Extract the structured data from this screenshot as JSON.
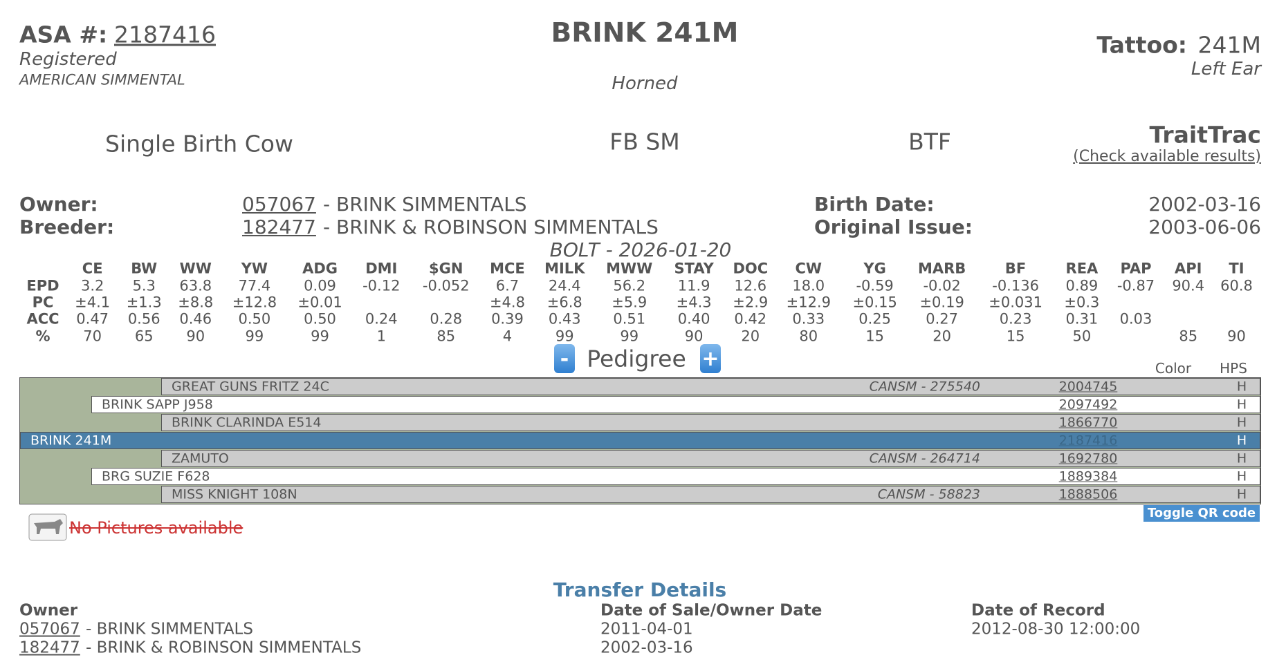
{
  "header": {
    "asa_label": "ASA #:",
    "asa_number": "2187416",
    "status": "Registered",
    "association": "AMERICAN SIMMENTAL",
    "name": "BRINK 241M",
    "horn": "Horned",
    "tattoo_label": "Tattoo:",
    "tattoo": "241M",
    "tattoo_location": "Left Ear"
  },
  "info": {
    "birth_type": "Single Birth Cow",
    "breed": "FB SM",
    "code": "BTF",
    "traittrac": "TraitTrac",
    "traittrac_link": "(Check available results)"
  },
  "parties": [
    {
      "label": "Owner:",
      "id": "057067",
      "name": "- BRINK SIMMENTALS",
      "date_label": "Birth Date:",
      "date": "2002-03-16"
    },
    {
      "label": "Breeder:",
      "id": "182477",
      "name": "- BRINK & ROBINSON SIMMENTALS",
      "date_label": "Original Issue:",
      "date": "2003-06-06"
    }
  ],
  "epd": {
    "title": "BOLT - 2026-01-20",
    "columns": [
      "CE",
      "BW",
      "WW",
      "YW",
      "ADG",
      "DMI",
      "$GN",
      "MCE",
      "MILK",
      "MWW",
      "STAY",
      "DOC",
      "CW",
      "YG",
      "MARB",
      "BF",
      "REA",
      "PAP",
      "API",
      "TI"
    ],
    "rows": [
      {
        "label": "EPD",
        "cells": [
          "3.2",
          "5.3",
          "63.8",
          "77.4",
          "0.09",
          "-0.12",
          "-0.052",
          "6.7",
          "24.4",
          "56.2",
          "11.9",
          "12.6",
          "18.0",
          "-0.59",
          "-0.02",
          "-0.136",
          "0.89",
          "-0.87",
          "90.4",
          "60.8"
        ]
      },
      {
        "label": "PC",
        "cells": [
          "±4.1",
          "±1.3",
          "±8.8",
          "±12.8",
          "±0.01",
          null,
          null,
          "±4.8",
          "±6.8",
          "±5.9",
          "±4.3",
          "±2.9",
          "±12.9",
          "±0.15",
          "±0.19",
          "±0.031",
          "±0.3",
          null,
          null,
          null
        ]
      },
      {
        "label": "ACC",
        "cells": [
          "0.47",
          "0.56",
          "0.46",
          "0.50",
          "0.50",
          "0.24",
          "0.28",
          "0.39",
          "0.43",
          "0.51",
          "0.40",
          "0.42",
          "0.33",
          "0.25",
          "0.27",
          "0.23",
          "0.31",
          "0.03",
          null,
          null
        ]
      },
      {
        "label": "%",
        "cells": [
          "70",
          "65",
          "90",
          "99",
          "99",
          "1",
          "85",
          "4",
          "99",
          "99",
          "90",
          "20",
          "80",
          "15",
          "20",
          "15",
          "50",
          null,
          "85",
          "90"
        ]
      }
    ]
  },
  "pedigree": {
    "title": "Pedigree",
    "collapse": "-",
    "expand": "+",
    "color_header": "Color",
    "hps_header": "HPS",
    "rows": [
      {
        "level": 2,
        "name": "GREAT GUNS FRITZ 24C",
        "alt": "CANSM - 275540",
        "reg": "2004745",
        "hps": "H"
      },
      {
        "level": 1,
        "name": "BRINK SAPP J958",
        "reg": "2097492",
        "hps": "H"
      },
      {
        "level": 2,
        "name": "BRINK CLARINDA E514",
        "reg": "1866770",
        "hps": "H"
      },
      {
        "level": 0,
        "name": "BRINK 241M",
        "reg": "2187416",
        "hps": "H"
      },
      {
        "level": 2,
        "name": "ZAMUTO",
        "alt": "CANSM - 264714",
        "reg": "1692780",
        "hps": "H"
      },
      {
        "level": 1,
        "name": "BRG SUZIE F628",
        "reg": "1889384",
        "hps": "H"
      },
      {
        "level": 2,
        "name": "MISS KNIGHT 108N",
        "alt": "CANSM - 58823",
        "reg": "1888506",
        "hps": "H"
      }
    ],
    "qr_button": "Toggle QR code"
  },
  "pictures": {
    "message": "No Pictures available"
  },
  "transfer": {
    "title": "Transfer Details",
    "headers": [
      "Owner",
      "Date of Sale/Owner Date",
      "Date of Record"
    ],
    "rows": [
      {
        "id": "057067",
        "name": "- BRINK SIMMENTALS",
        "sale_date": "2011-04-01",
        "record_date": "2012-08-30 12:00:00"
      },
      {
        "id": "182477",
        "name": "- BRINK & ROBINSON SIMMENTALS",
        "sale_date": "2002-03-16"
      }
    ]
  }
}
